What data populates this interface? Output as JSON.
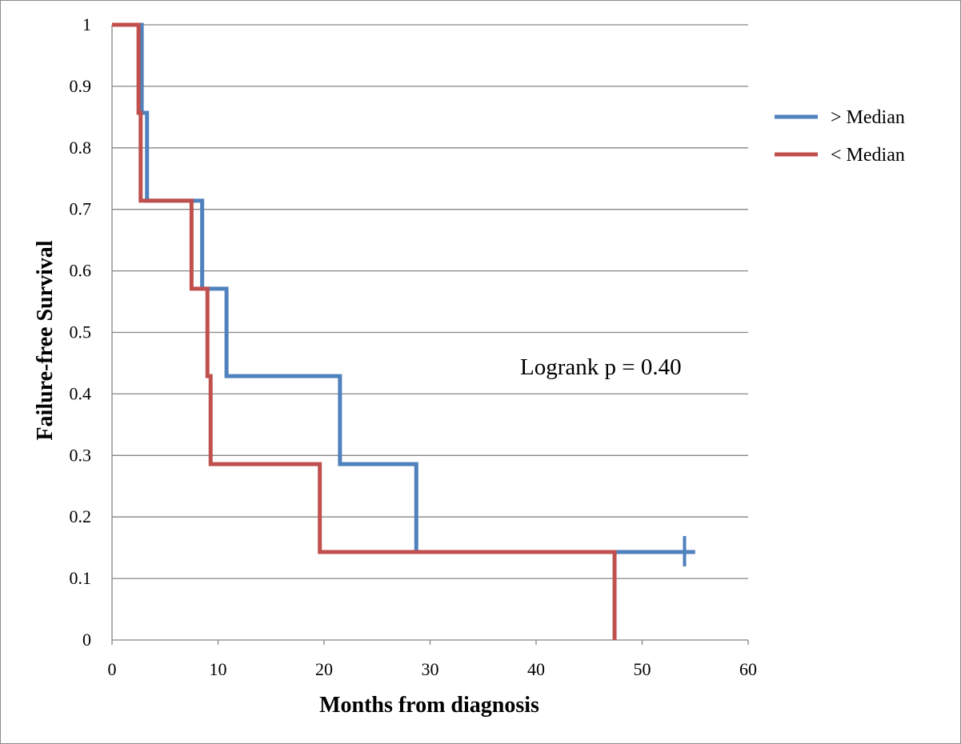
{
  "chart_data": {
    "type": "line",
    "step": true,
    "xlabel": "Months from diagnosis",
    "ylabel": "Failure-free Survival",
    "xlim": [
      0,
      60
    ],
    "ylim": [
      0,
      1
    ],
    "xticks": [
      "0",
      "10",
      "20",
      "30",
      "40",
      "50",
      "60"
    ],
    "yticks": [
      "0",
      "0.1",
      "0.2",
      "0.3",
      "0.4",
      "0.5",
      "0.6",
      "0.7",
      "0.8",
      "0.9",
      "1"
    ],
    "grid": "horizontal",
    "legend_position": "right",
    "annotation": "Logrank p = 0.40",
    "series": [
      {
        "name": "> Median",
        "color": "#4f81bd",
        "x": [
          0,
          2.8,
          3.3,
          8.5,
          10.8,
          21.5,
          28.7,
          55
        ],
        "y": [
          1,
          0.857,
          0.714,
          0.571,
          0.429,
          0.286,
          0.143,
          0.143
        ],
        "censored": [
          {
            "x": 54,
            "y": 0.143
          }
        ]
      },
      {
        "name": "< Median",
        "color": "#c0504d",
        "x": [
          0,
          2.5,
          2.7,
          7.5,
          9.0,
          9.3,
          19.6,
          47.4
        ],
        "y": [
          1,
          0.857,
          0.714,
          0.571,
          0.429,
          0.286,
          0.143,
          0
        ]
      }
    ]
  }
}
